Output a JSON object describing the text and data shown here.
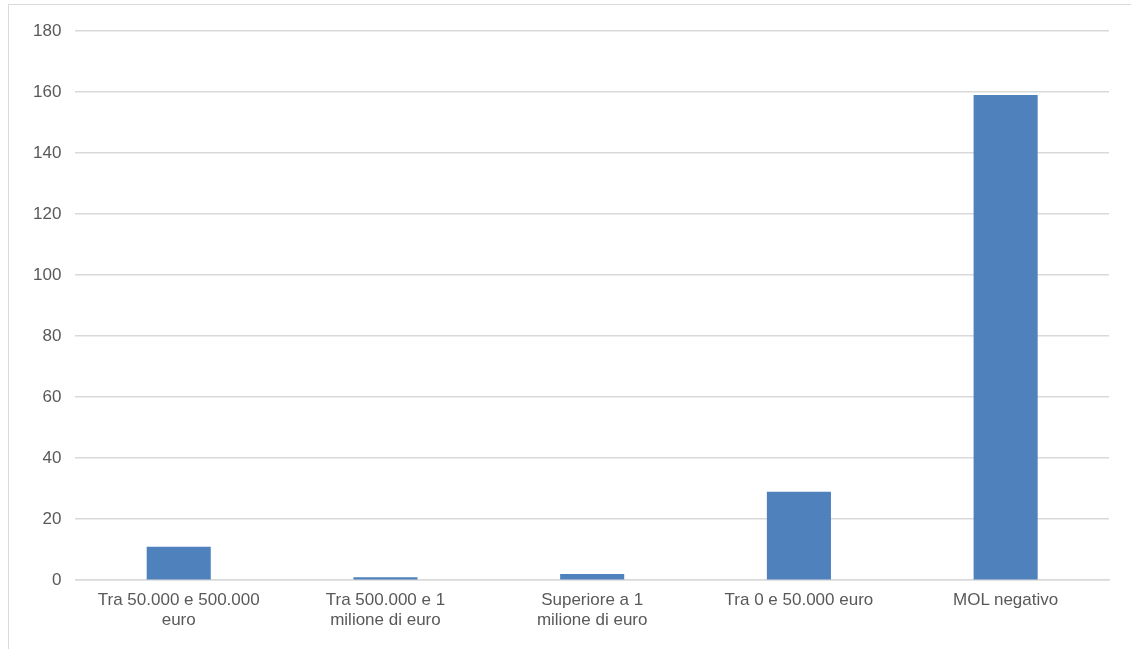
{
  "chart_data": {
    "type": "bar",
    "categories": [
      "Tra 50.000 e 500.000 euro",
      "Tra 500.000 e 1 milione di euro",
      "Superiore a 1 milione di euro",
      "Tra 0 e 50.000 euro",
      "MOL negativo"
    ],
    "values": [
      11,
      1,
      2,
      29,
      159
    ],
    "color": "#4f81bd",
    "ylim": [
      0,
      180
    ],
    "yticks": [
      0,
      20,
      40,
      60,
      80,
      100,
      120,
      140,
      160,
      180
    ],
    "grid": "y"
  }
}
